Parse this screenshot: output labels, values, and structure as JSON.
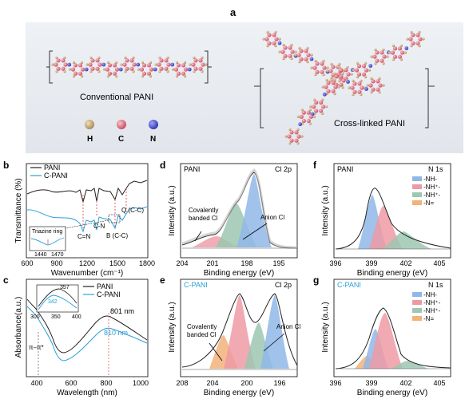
{
  "figure": {
    "panel_labels": [
      "a",
      "b",
      "c",
      "d",
      "e",
      "f",
      "g"
    ]
  },
  "panel_a": {
    "conventional_label": "Conventional PANI",
    "crosslinked_label": "Cross-linked PANI",
    "legend": [
      {
        "symbol": "H",
        "color": "#c8a96b"
      },
      {
        "symbol": "C",
        "color": "#e0687a"
      },
      {
        "symbol": "N",
        "color": "#4a4fd6"
      }
    ]
  },
  "panel_b": {
    "ylabel": "Transmittance (%)",
    "xlabel": "Wavenumber (cm⁻¹)",
    "xticks": [
      "600",
      "900",
      "1200",
      "1500",
      "1800"
    ],
    "legend": [
      "PANI",
      "C-PANI"
    ],
    "annotations": [
      "C=N",
      "C-N",
      "B (C-C)",
      "Q (C-C)"
    ],
    "inset_title": "Triazine ring",
    "inset_ticks": [
      "1440",
      "1470"
    ]
  },
  "panel_c": {
    "ylabel": "Absorbance(a.u.)",
    "xlabel": "Wavelength (nm)",
    "xticks": [
      "400",
      "600",
      "800",
      "1000"
    ],
    "legend": [
      "PANI",
      "C-PANI"
    ],
    "annotations": [
      "801 nm",
      "810 nm",
      "π–π*"
    ],
    "inset_labels": [
      "357",
      "342"
    ],
    "inset_ticks": [
      "300",
      "350",
      "400"
    ]
  },
  "panel_d": {
    "sample": "PANI",
    "core": "Cl 2p",
    "ylabel": "Intensity (a.u.)",
    "xlabel": "Binding energy (eV)",
    "xticks": [
      "204",
      "201",
      "198",
      "195"
    ],
    "annotations": [
      "Covalently",
      "banded Cl",
      "Anion Cl"
    ]
  },
  "panel_e": {
    "sample": "C-PANI",
    "core": "Cl 2p",
    "ylabel": "Intensity (a.u.)",
    "xlabel": "Binding energy (eV)",
    "xticks": [
      "208",
      "204",
      "200",
      "196"
    ],
    "annotations": [
      "Covalently",
      "banded Cl",
      "Anion Cl"
    ]
  },
  "panel_f": {
    "sample": "PANI",
    "core": "N 1s",
    "ylabel": "Intensity (a.u.)",
    "xlabel": "Binding energy (eV)",
    "xticks": [
      "396",
      "399",
      "402",
      "405"
    ],
    "legend": [
      "-NH-",
      "-NH⁺-",
      "-NH⁺-",
      "-N="
    ]
  },
  "panel_g": {
    "sample": "C-PANI",
    "core": "N 1s",
    "ylabel": "Intensity (a.u.)",
    "xlabel": "Binding energy (eV)",
    "xticks": [
      "396",
      "399",
      "402",
      "405"
    ],
    "legend": [
      "-NH-",
      "-NH⁺-",
      "-NH⁺-",
      "-N="
    ]
  },
  "colors": {
    "pani": "#222222",
    "cpani": "#2a9fd6",
    "blue_fill": "#8fb7e8",
    "red_fill": "#ee9aa5",
    "green_fill": "#9cc7b0",
    "orange_fill": "#f2b27a",
    "gray_fill": "#cfd6da"
  }
}
